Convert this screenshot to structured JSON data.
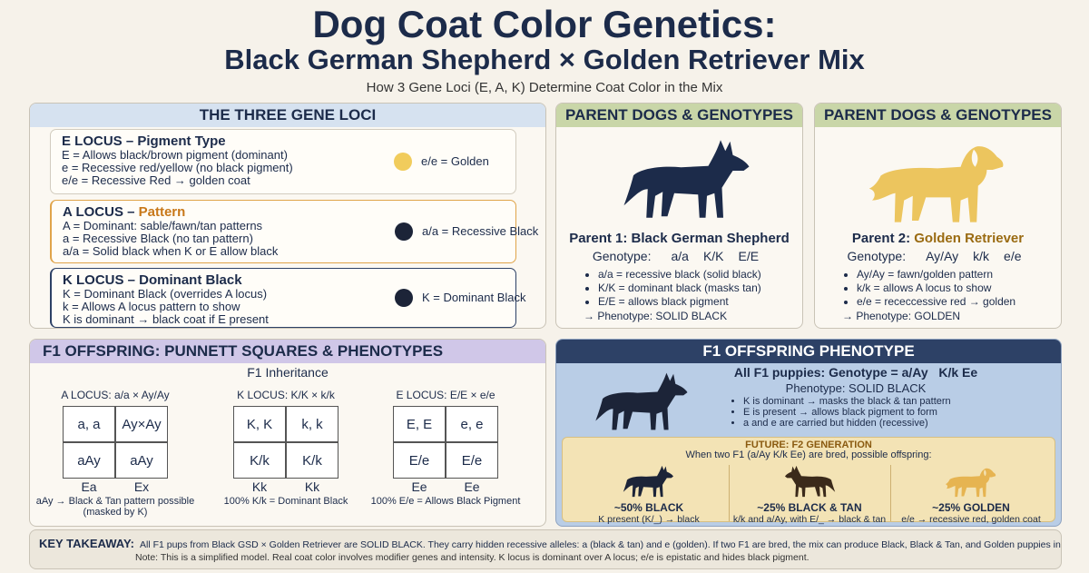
{
  "header": {
    "title_line1": "Dog Coat Color Genetics:",
    "title_line2": "Black German Shepherd × Golden Retriever Mix",
    "subtitle": "How 3 Gene Loci (E, A, K) Determine Coat Color in the Mix"
  },
  "loci": {
    "title": "THE THREE GENE LOCI",
    "items": [
      {
        "name": "E LOCUS – Pigment Type",
        "lines": [
          "E = Allows black/brown pigment (dominant)",
          "e = Recessive red/yellow (no black pigment)",
          "e/e = Recessive Red → golden coat"
        ],
        "legend": "e/e = Golden"
      },
      {
        "name": "A LOCUS – ",
        "name_em": "Pattern",
        "lines": [
          "A = Dominant: sable/fawn/tan patterns",
          "a = Recessive Black (no tan pattern)",
          "a/a = Solid black when K or E allow black"
        ],
        "legend": "a/a = Recessive Black"
      },
      {
        "name": "K LOCUS – Dominant Black",
        "lines": [
          "K = Dominant Black (overrides A locus)",
          "k = Allows A locus pattern to show",
          "K is dominant → black coat if E present"
        ],
        "legend": "K = Dominant Black"
      }
    ]
  },
  "parents": [
    {
      "heading": "PARENT DOGS & GENOTYPES",
      "name": "Parent 1: Black German Shepherd",
      "genotype_label": "Genotype:",
      "genotype": [
        "a/a",
        "K/K",
        "E/E"
      ],
      "notes": [
        "a/a = recessive black (solid black)",
        "K/K = dominant black (masks tan)",
        "E/E = allows black pigment"
      ],
      "phenotype": "→ Phenotype: SOLID BLACK"
    },
    {
      "heading": "PARENT DOGS & GENOTYPES",
      "name": "Parent 2: ",
      "name_em": "Golden Retriever",
      "genotype_label": "Genotype:",
      "genotype": [
        "Ay/Ay",
        "k/k",
        "e/e"
      ],
      "notes": [
        "Ay/Ay = fawn/golden pattern",
        "k/k = allows A locus to show",
        "e/e = receccessive red → golden"
      ],
      "phenotype": "→ Phenotype: GOLDEN"
    }
  ],
  "punnett": {
    "title": "F1 OFFSPRING: PUNNETT SQUARES & PHENOTYPES",
    "subtitle": "F1 Inheritance",
    "squares": [
      {
        "label": "A LOCUS: a/a × Ay/Ay",
        "cells": [
          [
            "a, a",
            "Ay×Ay"
          ],
          [
            "aAy",
            "aAy"
          ]
        ],
        "cols": [
          "Ea",
          "Ex"
        ],
        "note": [
          "aAy → Black & Tan pattern possible",
          "(masked by K)"
        ]
      },
      {
        "label": "K LOCUS: K/K × k/k",
        "cells": [
          [
            "K, K",
            "k, k"
          ],
          [
            "K/k",
            "K/k"
          ]
        ],
        "cols": [
          "Kk",
          "Kk"
        ],
        "note": [
          "100% K/k = Dominant Black"
        ]
      },
      {
        "label": "E LOCUS: E/E × e/e",
        "cells": [
          [
            "E, E",
            "e, e"
          ],
          [
            "E/e",
            "E/e"
          ]
        ],
        "cols": [
          "Ee",
          "Ee"
        ],
        "note": [
          "100% E/e = Allows Black Pigment"
        ]
      }
    ]
  },
  "f1": {
    "title": "F1 OFFSPRING PHENOTYPE",
    "genotype": "All F1 puppies: Genotype = a/Ay   K/k Ee",
    "phenotype": "Phenotype: SOLID BLACK",
    "notes": [
      "K is dominant → masks the black & tan pattern",
      "E is present → allows black pigment to form",
      "a and e are carried but hidden (recessive)"
    ],
    "future": {
      "title": "FUTURE: F2 GENERATION",
      "intro": "When two F1 (a/Ay K/k Ee) are bred, possible offspring:",
      "outcomes": [
        {
          "label": "~50% BLACK",
          "desc": "K present (K/_) → black"
        },
        {
          "label": "~25% BLACK & TAN",
          "desc": "k/k and a/Ay, with E/_ → black & tan"
        },
        {
          "label": "~25% GOLDEN",
          "desc": "e/e → recessive red, golden coat"
        }
      ]
    }
  },
  "takeaway": {
    "label": "KEY TAKEAWAY:",
    "text": "All F1 pups from Black GSD × Golden Retriever are SOLID BLACK. They carry hidden recessive alleles: a (black & tan) and e (golden). If two F1 are bred, the mix can produce Black, Black & Tan, and Golden puppies in the next generation.",
    "note": "Note: This is a simplified model. Real coat color involves modifier genes and intensity. K locus is dominant over A locus; e/e is epistatic and hides black pigment."
  }
}
